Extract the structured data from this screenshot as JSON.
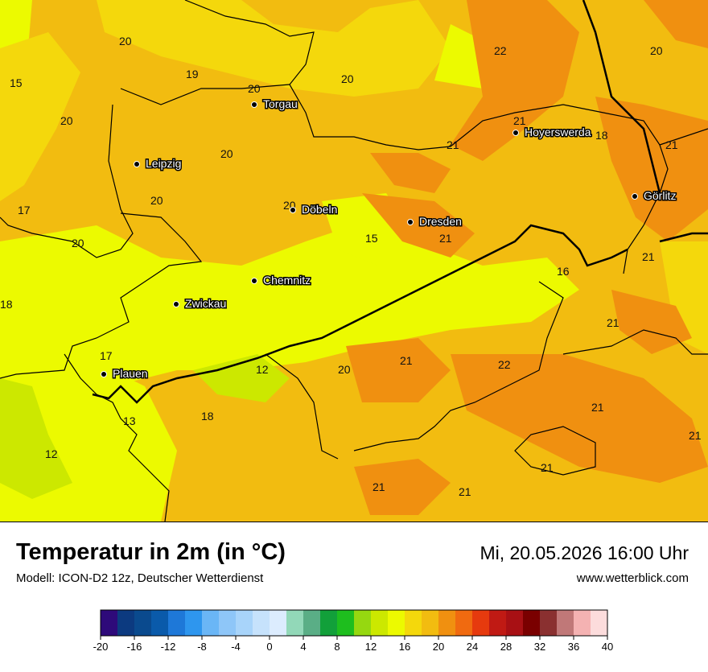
{
  "map": {
    "cities": [
      {
        "name": "Torgau"
      },
      {
        "name": "Hoyerswerda"
      },
      {
        "name": "Leipzig"
      },
      {
        "name": "Döbeln"
      },
      {
        "name": "Dresden"
      },
      {
        "name": "Görlitz"
      },
      {
        "name": "Chemnitz"
      },
      {
        "name": "Zwickau"
      },
      {
        "name": "Plauen"
      }
    ],
    "values": [
      "20",
      "22",
      "20",
      "15",
      "19",
      "20",
      "20",
      "20",
      "21",
      "21",
      "18",
      "20",
      "21",
      "20",
      "17",
      "20",
      "20",
      "15",
      "21",
      "21",
      "16",
      "18",
      "21",
      "17",
      "20",
      "21",
      "22",
      "12",
      "21",
      "13",
      "18",
      "21",
      "12",
      "21",
      "21",
      "21"
    ]
  },
  "footer": {
    "title": "Temperatur in 2m (in °C)",
    "model": "Modell: ICON-D2 12z, Deutscher Wetterdienst",
    "datetime": "Mi, 20.05.2026 16:00 Uhr",
    "website": "www.wetterblick.com"
  },
  "legend": {
    "ticks": [
      "-20",
      "-16",
      "-12",
      "-8",
      "-4",
      "0",
      "4",
      "8",
      "12",
      "16",
      "20",
      "24",
      "28",
      "32",
      "36",
      "40"
    ],
    "colors": [
      "#2e0a7a",
      "#0c3a80",
      "#0a4a8e",
      "#0a5aaa",
      "#1e78d8",
      "#2e96ee",
      "#6ab6f6",
      "#8ec6f8",
      "#a8d4fa",
      "#c6e2fc",
      "#dcecfe",
      "#92d8b8",
      "#5aae86",
      "#12a03a",
      "#1ebe1e",
      "#96d810",
      "#cce800",
      "#ecfa00",
      "#f4d80c",
      "#f2bc10",
      "#f09010",
      "#f06a10",
      "#e63a0e",
      "#c01a14",
      "#a81014",
      "#7a0000",
      "#8a3030",
      "#c07878",
      "#f4b2b2",
      "#fcdcdc"
    ]
  }
}
